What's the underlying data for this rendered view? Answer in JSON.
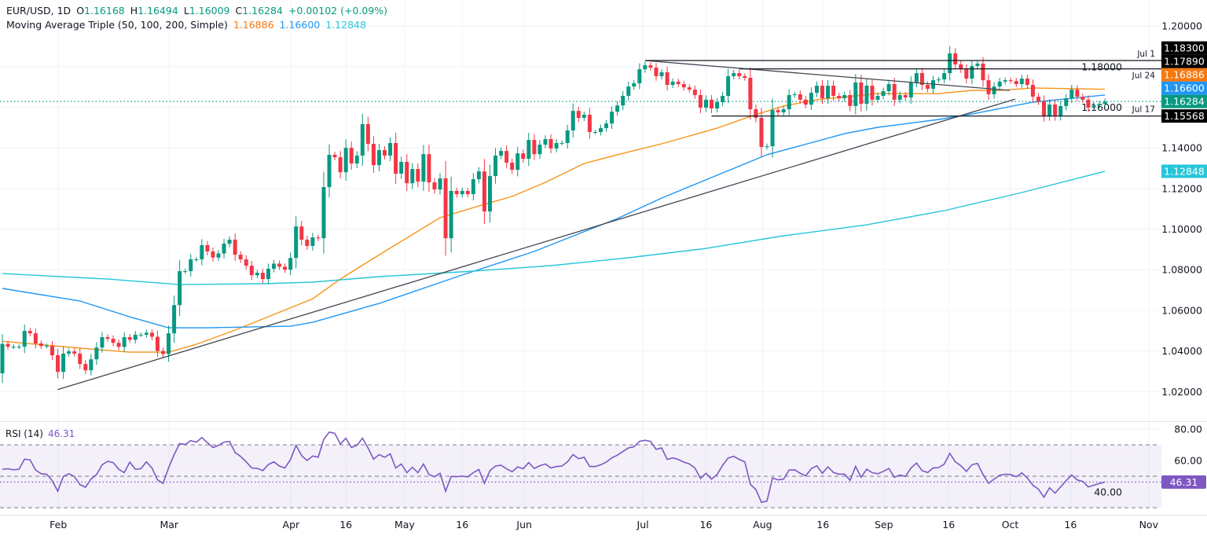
{
  "header": {
    "symbol": "EUR/USD, 1D",
    "ohlc": [
      {
        "k": "O",
        "v": "1.16168"
      },
      {
        "k": "H",
        "v": "1.16494"
      },
      {
        "k": "L",
        "v": "1.16009"
      },
      {
        "k": "C",
        "v": "1.16284"
      }
    ],
    "change": "+0.00102 (+0.09%)",
    "ma_label": "Moving Average Triple (50, 100, 200, Simple)",
    "ma_values": [
      "1.16886",
      "1.16600",
      "1.12848"
    ]
  },
  "rsi_header": {
    "label": "RSI (14)",
    "value": "46.31"
  },
  "colors": {
    "up": "#089981",
    "down": "#f23645",
    "ma50": "#f7931a",
    "ma100": "#2196f3",
    "ma200": "#26c6da",
    "rsi": "#7e57c2",
    "drawing": "#131722",
    "text": "#131722",
    "grid": "#f0f3fa"
  },
  "chart_data": {
    "type": "candlestick",
    "title": "EUR/USD, 1D",
    "xlim": [
      -0.43,
      209.2
    ],
    "x_ticks": [
      {
        "label": "Feb",
        "bar": 10.1
      },
      {
        "label": "Mar",
        "bar": 30.1
      },
      {
        "label": "Apr",
        "bar": 52.1
      },
      {
        "label": "16",
        "bar": 62
      },
      {
        "label": "May",
        "bar": 72.6
      },
      {
        "label": "16",
        "bar": 83
      },
      {
        "label": "Jun",
        "bar": 94.2
      },
      {
        "label": "Jul",
        "bar": 115.6
      },
      {
        "label": "16",
        "bar": 127
      },
      {
        "label": "Aug",
        "bar": 137.2
      },
      {
        "label": "16",
        "bar": 148.1
      },
      {
        "label": "Sep",
        "bar": 159.1
      },
      {
        "label": "16",
        "bar": 170.8
      },
      {
        "label": "Oct",
        "bar": 181.9
      },
      {
        "label": "16",
        "bar": 192.8
      },
      {
        "label": "Nov",
        "bar": 206.9
      }
    ],
    "price_axis": {
      "ylim": [
        1.0054,
        1.2128
      ],
      "ticks": [
        "1.20000",
        "1.18000",
        "1.16000",
        "1.14000",
        "1.12000",
        "1.10000",
        "1.08000",
        "1.06000",
        "1.04000",
        "1.02000"
      ]
    },
    "first_open": 1.029,
    "closes": [
      1.0435,
      1.0421,
      1.0421,
      1.0421,
      1.0499,
      1.0487,
      1.0437,
      1.0425,
      1.0425,
      1.0379,
      1.0297,
      1.0387,
      1.0398,
      1.0387,
      1.0336,
      1.0305,
      1.0359,
      1.0417,
      1.0468,
      1.046,
      1.044,
      1.042,
      1.0468,
      1.0455,
      1.048,
      1.048,
      1.049,
      1.047,
      1.04,
      1.0385,
      1.0487,
      1.0626,
      1.0793,
      1.0793,
      1.0851,
      1.0851,
      1.0921,
      1.089,
      1.086,
      1.088,
      1.0928,
      1.0948,
      1.0874,
      1.0851,
      1.082,
      1.0773,
      1.0785,
      1.0754,
      1.0805,
      1.083,
      1.0815,
      1.08,
      1.0858,
      1.1013,
      1.0948,
      1.0917,
      1.0959,
      1.0955,
      1.1207,
      1.1366,
      1.1354,
      1.128,
      1.14,
      1.1323,
      1.1362,
      1.1517,
      1.142,
      1.1315,
      1.1389,
      1.1362,
      1.1424,
      1.1273,
      1.1331,
      1.1226,
      1.1296,
      1.1234,
      1.1369,
      1.123,
      1.1195,
      1.125,
      1.0955,
      1.1188,
      1.1172,
      1.1188,
      1.1172,
      1.1246,
      1.1284,
      1.1087,
      1.1261,
      1.1362,
      1.1385,
      1.1327,
      1.1292,
      1.1373,
      1.1346,
      1.1439,
      1.1369,
      1.1416,
      1.1443,
      1.1397,
      1.1424,
      1.1424,
      1.1486,
      1.1582,
      1.1548,
      1.1563,
      1.1478,
      1.1478,
      1.1497,
      1.152,
      1.1578,
      1.1609,
      1.1656,
      1.1702,
      1.1718,
      1.1787,
      1.1807,
      1.1795,
      1.1753,
      1.1772,
      1.171,
      1.1726,
      1.1714,
      1.1698,
      1.1687,
      1.166,
      1.1598,
      1.1637,
      1.1594,
      1.1625,
      1.1656,
      1.1753,
      1.1768,
      1.1753,
      1.1745,
      1.159,
      1.1548,
      1.1404,
      1.1408,
      1.1586,
      1.1575,
      1.159,
      1.166,
      1.1664,
      1.1637,
      1.1613,
      1.1671,
      1.1706,
      1.1644,
      1.1706,
      1.1656,
      1.1644,
      1.166,
      1.1606,
      1.1722,
      1.1617,
      1.1706,
      1.1637,
      1.1656,
      1.1679,
      1.1714,
      1.1637,
      1.166,
      1.1648,
      1.1722,
      1.1768,
      1.171,
      1.1691,
      1.1733,
      1.1737,
      1.1768,
      1.1865,
      1.1811,
      1.1787,
      1.1741,
      1.1803,
      1.1815,
      1.1733,
      1.1664,
      1.1702,
      1.1726,
      1.1733,
      1.1729,
      1.1714,
      1.1741,
      1.171,
      1.1652,
      1.1629,
      1.1559,
      1.1613,
      1.1559,
      1.1606,
      1.1644,
      1.1687,
      1.1652,
      1.1637,
      1.1598,
      1.161,
      1.1617,
      1.1628
    ],
    "moving_averages": [
      {
        "name": "SMA 50",
        "color_key": "ma50",
        "points": [
          [
            0,
            1.0448
          ],
          [
            14,
            1.0414
          ],
          [
            23,
            1.0394
          ],
          [
            30,
            1.0394
          ],
          [
            35,
            1.0433
          ],
          [
            42,
            1.0503
          ],
          [
            49,
            1.058
          ],
          [
            56,
            1.0657
          ],
          [
            61,
            1.0754
          ],
          [
            69,
            1.089
          ],
          [
            79,
            1.1056
          ],
          [
            86,
            1.1114
          ],
          [
            92,
            1.1161
          ],
          [
            98,
            1.123
          ],
          [
            105,
            1.1323
          ],
          [
            112,
            1.1373
          ],
          [
            119,
            1.142
          ],
          [
            129,
            1.1497
          ],
          [
            135,
            1.1555
          ],
          [
            141,
            1.1606
          ],
          [
            147,
            1.1637
          ],
          [
            158,
            1.1667
          ],
          [
            169,
            1.1667
          ],
          [
            175,
            1.1683
          ],
          [
            180,
            1.1683
          ],
          [
            186,
            1.1695
          ],
          [
            199,
            1.16886
          ]
        ]
      },
      {
        "name": "SMA 100",
        "color_key": "ma100",
        "points": [
          [
            0,
            1.0708
          ],
          [
            14,
            1.0646
          ],
          [
            23,
            1.0568
          ],
          [
            30,
            1.0514
          ],
          [
            37,
            1.0514
          ],
          [
            52,
            1.0522
          ],
          [
            56,
            1.0541
          ],
          [
            61,
            1.058
          ],
          [
            68,
            1.0634
          ],
          [
            83,
            1.0774
          ],
          [
            96,
            1.089
          ],
          [
            111,
            1.1052
          ],
          [
            119,
            1.1153
          ],
          [
            138,
            1.1366
          ],
          [
            152,
            1.147
          ],
          [
            158,
            1.1501
          ],
          [
            169,
            1.154
          ],
          [
            175,
            1.1567
          ],
          [
            186,
            1.1625
          ],
          [
            199,
            1.166
          ]
        ]
      },
      {
        "name": "SMA 200",
        "color_key": "ma200",
        "points": [
          [
            0,
            1.0781
          ],
          [
            19,
            1.0754
          ],
          [
            32,
            1.0727
          ],
          [
            47,
            1.0731
          ],
          [
            56,
            1.0739
          ],
          [
            68,
            1.0766
          ],
          [
            85,
            1.0793
          ],
          [
            99,
            1.082
          ],
          [
            113,
            1.0859
          ],
          [
            127,
            1.0905
          ],
          [
            141,
            1.0967
          ],
          [
            156,
            1.1021
          ],
          [
            170,
            1.1091
          ],
          [
            184,
            1.118
          ],
          [
            199,
            1.12848
          ]
        ]
      }
    ],
    "drawings": {
      "trendlines": [
        {
          "from": [
            10,
            1.021
          ],
          "to": [
            182.8,
            1.164
          ]
        },
        {
          "from": [
            116,
            1.183
          ],
          "to": [
            181.8,
            1.1683
          ]
        }
      ],
      "horizontal_lines": [
        {
          "label": "Jul 1",
          "price": 1.183,
          "start_bar": 116,
          "label_side": "above"
        },
        {
          "label": "Jul 24",
          "price": 1.1789,
          "start_bar": 133,
          "label_side": "below"
        },
        {
          "label": "Jul 17",
          "price": 1.15568,
          "start_bar": 128,
          "label_side": "above"
        }
      ]
    },
    "last_price": 1.16284,
    "price_badges": [
      {
        "text": "1.18300",
        "value": 1.183,
        "color": "#000000"
      },
      {
        "text": "1.17890",
        "value": 1.1789,
        "color": "#000000"
      },
      {
        "text": "1.16886",
        "value": 1.16886,
        "color": "#f7780f"
      },
      {
        "text": "1.16600",
        "value": 1.166,
        "color": "#2196f3"
      },
      {
        "text": "1.16284",
        "value": 1.16284,
        "color": "#089981"
      },
      {
        "text": "1.15568",
        "value": 1.15568,
        "color": "#000000"
      },
      {
        "text": "1.12848",
        "value": 1.12848,
        "color": "#26c6da"
      }
    ],
    "rsi": {
      "period": 14,
      "ylim": [
        25.5,
        85
      ],
      "ticks": [
        "80.00",
        "60.00",
        "40.00"
      ],
      "bands": {
        "upper": 70,
        "middle": 50,
        "lower": 30
      },
      "last": 46.31,
      "last_text": "46.31",
      "values": [
        54.5,
        54.8,
        54.1,
        54.5,
        60.9,
        60.4,
        54.0,
        51.6,
        51.3,
        47.2,
        40.5,
        49.9,
        51.6,
        49.9,
        44.7,
        43.0,
        48.2,
        51.1,
        57.3,
        59.5,
        58.7,
        54.5,
        52.3,
        59.0,
        54.5,
        54.8,
        59.2,
        55.3,
        47.7,
        45.5,
        55.3,
        63.8,
        70.8,
        70.2,
        72.7,
        71.7,
        74.6,
        71.4,
        68.3,
        69.7,
        71.7,
        72.2,
        65.1,
        62.6,
        59.2,
        55.3,
        55.0,
        53.6,
        57.5,
        59.2,
        56.5,
        55.3,
        60.7,
        69.7,
        63.2,
        60.0,
        62.9,
        62.1,
        73.5,
        78.1,
        77.3,
        70.5,
        74.2,
        68.3,
        69.7,
        74.2,
        68.0,
        60.9,
        63.8,
        62.1,
        64.3,
        55.3,
        57.8,
        52.3,
        55.7,
        52.3,
        57.8,
        51.1,
        49.7,
        51.9,
        40.5,
        49.9,
        49.7,
        50.1,
        49.6,
        52.3,
        54.3,
        45.5,
        53.6,
        56.5,
        57.0,
        54.8,
        52.9,
        56.0,
        54.8,
        58.7,
        55.0,
        56.7,
        57.8,
        55.3,
        56.2,
        56.5,
        59.2,
        63.8,
        61.2,
        62.1,
        56.2,
        56.2,
        57.3,
        59.0,
        61.7,
        63.4,
        65.8,
        68.0,
        68.8,
        72.2,
        72.9,
        72.2,
        67.1,
        68.0,
        60.7,
        61.7,
        60.7,
        59.0,
        57.8,
        55.3,
        48.6,
        51.9,
        48.2,
        51.1,
        57.0,
        61.6,
        62.7,
        60.7,
        59.2,
        44.9,
        41.5,
        33.4,
        34.2,
        48.9,
        47.7,
        48.2,
        54.0,
        54.1,
        51.9,
        50.3,
        54.8,
        56.7,
        51.9,
        56.0,
        52.4,
        51.3,
        51.4,
        47.4,
        56.3,
        49.4,
        54.5,
        52.3,
        51.6,
        53.1,
        55.0,
        49.4,
        50.8,
        49.9,
        55.3,
        58.4,
        53.6,
        52.4,
        55.3,
        55.5,
        57.7,
        64.6,
        59.2,
        56.7,
        53.1,
        57.3,
        58.2,
        51.1,
        45.5,
        48.2,
        50.6,
        51.3,
        51.1,
        49.7,
        52.1,
        48.9,
        44.3,
        41.8,
        36.7,
        42.7,
        39.3,
        43.2,
        47.2,
        50.8,
        47.7,
        46.7,
        43.2,
        44.3,
        45.4,
        46.3
      ]
    }
  }
}
